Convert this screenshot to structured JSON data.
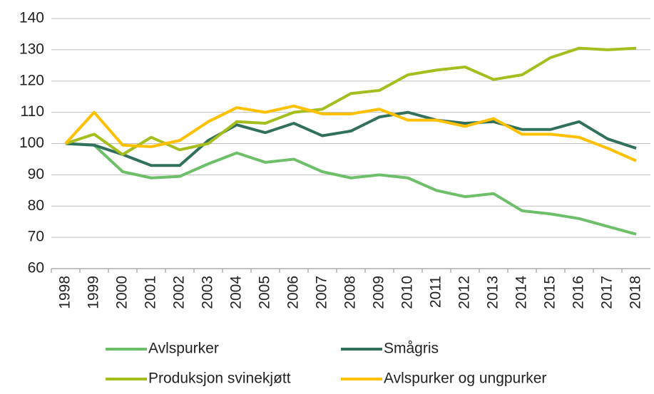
{
  "chart_data": {
    "type": "line",
    "x": [
      "1998",
      "1999",
      "2000",
      "2001",
      "2002",
      "2003",
      "2004",
      "2005",
      "2006",
      "2007",
      "2008",
      "2009",
      "2010",
      "2011",
      "2012",
      "2013",
      "2014",
      "2015",
      "2016",
      "2017",
      "2018"
    ],
    "series": [
      {
        "name": "Avlspurker",
        "color": "#6dbf6a",
        "values": [
          100,
          99.5,
          91,
          89,
          89.5,
          93.5,
          97,
          94,
          95,
          91,
          89,
          90,
          89,
          85,
          83,
          84,
          78.5,
          77.5,
          76,
          73.5,
          71
        ]
      },
      {
        "name": "Smågris",
        "color": "#32705e",
        "values": [
          100,
          99.5,
          96.5,
          93,
          93,
          101,
          106,
          103.5,
          106.5,
          102.5,
          104,
          108.5,
          110,
          107.5,
          106.5,
          107,
          104.5,
          104.5,
          107,
          101.5,
          98.5
        ]
      },
      {
        "name": "Produksjon svinekjøtt",
        "color": "#a6bd1e",
        "values": [
          100,
          103,
          96.5,
          102,
          98,
          100,
          107,
          106.5,
          110,
          111,
          116,
          117,
          122,
          123.5,
          124.5,
          120.5,
          122,
          127.5,
          130.5,
          130,
          130.5
        ]
      },
      {
        "name": "Avlspurker og ungpurker",
        "color": "#ffc000",
        "values": [
          100,
          110,
          99.5,
          99,
          101,
          107,
          111.5,
          110,
          112,
          109.5,
          109.5,
          111,
          107.5,
          107.5,
          105.5,
          108,
          103,
          103,
          102,
          98.5,
          94.5
        ]
      }
    ],
    "ylim": [
      60,
      140
    ],
    "yticks": [
      60,
      70,
      80,
      90,
      100,
      110,
      120,
      130,
      140
    ],
    "grid": true,
    "legend": "bottom"
  }
}
